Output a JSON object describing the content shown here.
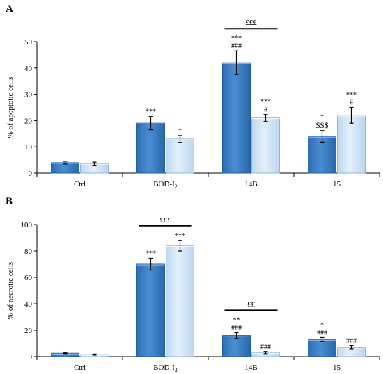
{
  "colors": {
    "series_dark": "#3a7cc4",
    "series_dark_edge": "#1f5ea8",
    "series_light": "#cfe3f7",
    "series_light_edge": "#8fb6dc",
    "axis": "#000000",
    "frame": "#bfbfbf"
  },
  "chart_data": [
    {
      "panel_label": "A",
      "type": "bar",
      "title": "",
      "ylabel": "% of apoptotic cells",
      "xlabel": "",
      "ylim": [
        0,
        50
      ],
      "yticks": [
        "0",
        "10",
        "20",
        "30",
        "40",
        "50"
      ],
      "grid": false,
      "categories": [
        "Ctrl",
        "BOD-I2",
        "14B",
        "15"
      ],
      "category_labels": [
        {
          "main": "Ctrl",
          "sub": ""
        },
        {
          "main": "BOD-I",
          "sub": "2"
        },
        {
          "main": "14B",
          "sub": ""
        },
        {
          "main": "15",
          "sub": ""
        }
      ],
      "series": [
        {
          "values": [
            4,
            19,
            42,
            14
          ],
          "errors": [
            0.5,
            2.5,
            4.5,
            2.2
          ],
          "annotations": [
            [],
            [
              "***"
            ],
            [
              "***",
              "###"
            ],
            [
              "*",
              "$$$"
            ]
          ]
        },
        {
          "values": [
            3.5,
            13,
            21,
            22
          ],
          "errors": [
            0.7,
            1.3,
            1.3,
            3.0
          ],
          "annotations": [
            [],
            [
              "*"
            ],
            [
              "***",
              "#"
            ],
            [
              "***",
              "#"
            ]
          ]
        }
      ],
      "brackets": [
        {
          "category_index": 2,
          "label": "£££"
        }
      ]
    },
    {
      "panel_label": "B",
      "type": "bar",
      "title": "",
      "ylabel": "% of necrotic cells",
      "xlabel": "",
      "ylim": [
        0,
        100
      ],
      "yticks": [
        "0",
        "20",
        "40",
        "60",
        "80",
        "100"
      ],
      "grid": false,
      "categories": [
        "Ctrl",
        "BOD-I2",
        "14B",
        "15"
      ],
      "category_labels": [
        {
          "main": "Ctrl",
          "sub": ""
        },
        {
          "main": "BOD-I",
          "sub": "2"
        },
        {
          "main": "14B",
          "sub": ""
        },
        {
          "main": "15",
          "sub": ""
        }
      ],
      "series": [
        {
          "values": [
            2.5,
            70,
            16,
            13
          ],
          "errors": [
            0.3,
            4.5,
            2.2,
            1.5
          ],
          "annotations": [
            [],
            [
              "***"
            ],
            [
              "**",
              "###"
            ],
            [
              "*",
              "###"
            ]
          ]
        },
        {
          "values": [
            1.5,
            84,
            3,
            7
          ],
          "errors": [
            0.4,
            4.0,
            0.8,
            1.2
          ],
          "annotations": [
            [],
            [
              "***"
            ],
            [
              "###"
            ],
            [
              "###"
            ]
          ]
        }
      ],
      "brackets": [
        {
          "category_index": 1,
          "label": "£££"
        },
        {
          "category_index": 2,
          "label": "££"
        }
      ]
    }
  ]
}
